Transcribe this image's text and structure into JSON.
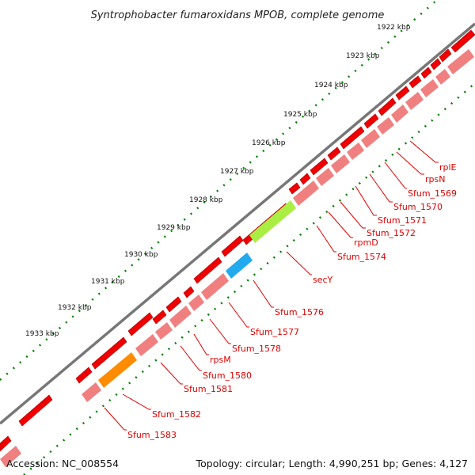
{
  "title": "Syntrophobacter fumaroxidans MPOB, complete genome",
  "footer": {
    "accession": "Accession: NC_008554",
    "summary": "Topology: circular; Length: 4,990,251 bp; Genes: 4,127"
  },
  "scale": {
    "labels": [
      "1922 kbp",
      "1923 kbp",
      "1924 kbp",
      "1925 kbp",
      "1926 kbp",
      "1927 kbp",
      "1928 kbp",
      "1929 kbp",
      "1930 kbp",
      "1931 kbp",
      "1932 kbp",
      "1933 kbp"
    ]
  },
  "colors": {
    "strand_red": "#ee0000",
    "strand_pink": "#f08080",
    "secY": "#aaee44",
    "Sfum_1576": "#22aaee",
    "Sfum_1582": "#ff8c00",
    "backbone": "#777777",
    "tick_green": "#008000",
    "label_red": "#e00000"
  },
  "gene_labels": [
    "rplE",
    "rpsN",
    "Sfum_1569",
    "Sfum_1570",
    "Sfum_1571",
    "Sfum_1572",
    "rpmD",
    "Sfum_1574",
    "secY",
    "Sfum_1576",
    "Sfum_1577",
    "Sfum_1578",
    "rpsM",
    "Sfum_1580",
    "Sfum_1581",
    "Sfum_1582",
    "Sfum_1583"
  ]
}
